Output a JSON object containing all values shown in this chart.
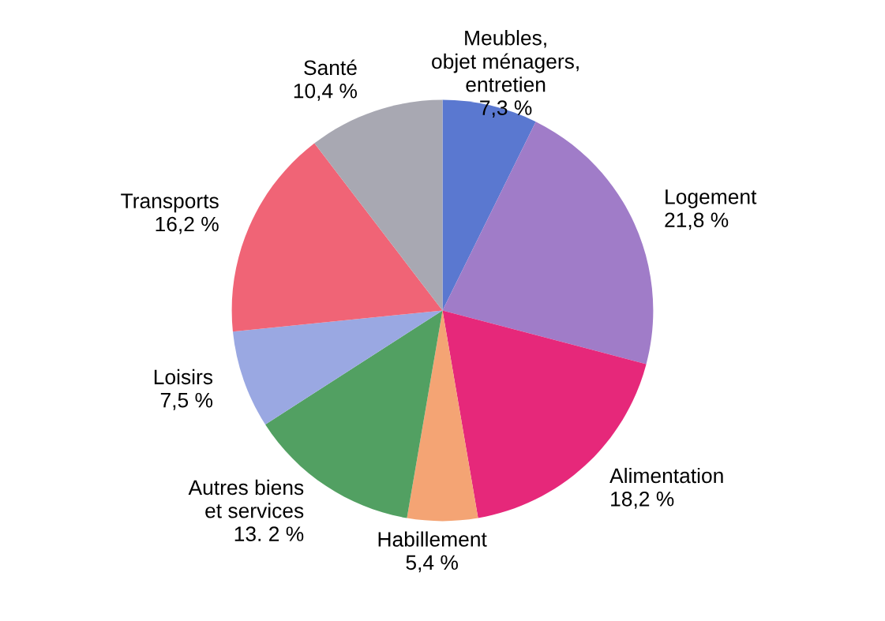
{
  "chart_data": {
    "type": "pie",
    "categories": [
      "Meubles,\nobjet ménagers,\nentretien",
      "Logement",
      "Alimentation",
      "Habillement",
      "Autres biens\net services",
      "Loisirs",
      "Transports",
      "Santé"
    ],
    "values": [
      7.3,
      21.8,
      18.2,
      5.4,
      13.2,
      7.5,
      16.2,
      10.4
    ],
    "value_labels": [
      "7,3 %",
      "21,8 %",
      "18,2 %",
      "5,4 %",
      "13. 2 %",
      "7,5 %",
      "16,2 %",
      "10,4 %"
    ],
    "colors": [
      "#5a78d0",
      "#a07cc8",
      "#e6287a",
      "#f4a474",
      "#52a062",
      "#9aa8e2",
      "#f06476",
      "#a8a8b2"
    ]
  }
}
